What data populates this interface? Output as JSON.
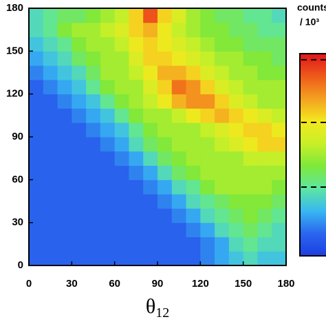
{
  "chart_data": {
    "type": "heatmap",
    "xlabel": {
      "base": "θ",
      "sub": "12"
    },
    "colorbar_label": [
      "counts",
      "/ 10³"
    ],
    "xlim": [
      0,
      180
    ],
    "ylim": [
      0,
      180
    ],
    "xticks": [
      0,
      30,
      60,
      90,
      120,
      150,
      180
    ],
    "yticks": [
      0,
      30,
      60,
      90,
      120,
      150,
      180
    ],
    "zlim": [
      0,
      10
    ],
    "cbar_ticks": [
      3.4,
      6.6,
      9.7
    ],
    "colormap": [
      "#1c3fe2",
      "#2a66ee",
      "#38b8f2",
      "#5ee6a0",
      "#7ee83a",
      "#c8ef28",
      "#f4e81e",
      "#f4a020",
      "#ee5a1a",
      "#e0141a"
    ],
    "z": [
      [
        1,
        1,
        1,
        1,
        1,
        1,
        1,
        1,
        1,
        1,
        1,
        1,
        1.5,
        2,
        2.5,
        3,
        2.5,
        2.5
      ],
      [
        1,
        1,
        1,
        1,
        1,
        1,
        1,
        1,
        1,
        1,
        1,
        1,
        1.5,
        2,
        3,
        3.5,
        3,
        3
      ],
      [
        1,
        1,
        1,
        1,
        1,
        1,
        1,
        1,
        1,
        1,
        1,
        1.5,
        2,
        3,
        3.5,
        4,
        3.5,
        3
      ],
      [
        1,
        1,
        1,
        1,
        1,
        1,
        1,
        1,
        1,
        1,
        1.5,
        2,
        3,
        3.5,
        4,
        4.5,
        4,
        3.5
      ],
      [
        1,
        1,
        1,
        1,
        1,
        1,
        1,
        1,
        1,
        1.5,
        2,
        3,
        3.5,
        4,
        4.5,
        4.5,
        4.5,
        4
      ],
      [
        1,
        1,
        1,
        1,
        1,
        1,
        1,
        1,
        1.5,
        2,
        3,
        3.5,
        4.5,
        5,
        5,
        5,
        5,
        4.5
      ],
      [
        1,
        1,
        1,
        1,
        1,
        1,
        1,
        1.5,
        2,
        3,
        4,
        4.5,
        5,
        5,
        5,
        5,
        5,
        5
      ],
      [
        1,
        1,
        1,
        1,
        1,
        1,
        1.5,
        2,
        3,
        4,
        4.5,
        5,
        5,
        5,
        5,
        5.5,
        5.5,
        5.5
      ],
      [
        1,
        1,
        1,
        1,
        1,
        1.5,
        2,
        3,
        4,
        4.5,
        5,
        5,
        5,
        5.5,
        6,
        6.5,
        7,
        7
      ],
      [
        1,
        1,
        1,
        1,
        1.5,
        2,
        2.5,
        3.5,
        4.5,
        5,
        5,
        5,
        5.5,
        6,
        6.5,
        7,
        7,
        6.5
      ],
      [
        1,
        1,
        1,
        1.5,
        2,
        2.5,
        3.5,
        4.5,
        5,
        5,
        5.5,
        6.5,
        7,
        7.5,
        7,
        6.5,
        6,
        5.5
      ],
      [
        1,
        1,
        1.5,
        2,
        2.5,
        3.5,
        4.5,
        5,
        5.5,
        6.5,
        7.5,
        8,
        8,
        7,
        6,
        5.5,
        5,
        5
      ],
      [
        1,
        1.5,
        2,
        2.5,
        3.5,
        4.5,
        5,
        5,
        6,
        7,
        8.5,
        8,
        7,
        6,
        5.5,
        5,
        5,
        5
      ],
      [
        1.5,
        2,
        2.5,
        3,
        4,
        5,
        5,
        5.5,
        6.5,
        7.5,
        7.5,
        7,
        6,
        5.5,
        5,
        5,
        4.5,
        4.5
      ],
      [
        2,
        2.5,
        3,
        4,
        4.5,
        5,
        5,
        6,
        7,
        7,
        6.5,
        6,
        5.5,
        5,
        5,
        4.5,
        4.5,
        4
      ],
      [
        2.5,
        3,
        3.5,
        4.5,
        5,
        5,
        5.5,
        6.5,
        7,
        6.5,
        6,
        5.5,
        5,
        4.5,
        4.5,
        4,
        4,
        4
      ],
      [
        3,
        3.5,
        4.5,
        5,
        5,
        5.5,
        6,
        7,
        7.5,
        6.5,
        5.5,
        5,
        4.5,
        4.5,
        4,
        4,
        3.5,
        3.5
      ],
      [
        3,
        3.5,
        4,
        4,
        4.5,
        5,
        5.5,
        7,
        9,
        7,
        6,
        5,
        4.5,
        4,
        4,
        3.5,
        3.5,
        3
      ]
    ]
  }
}
